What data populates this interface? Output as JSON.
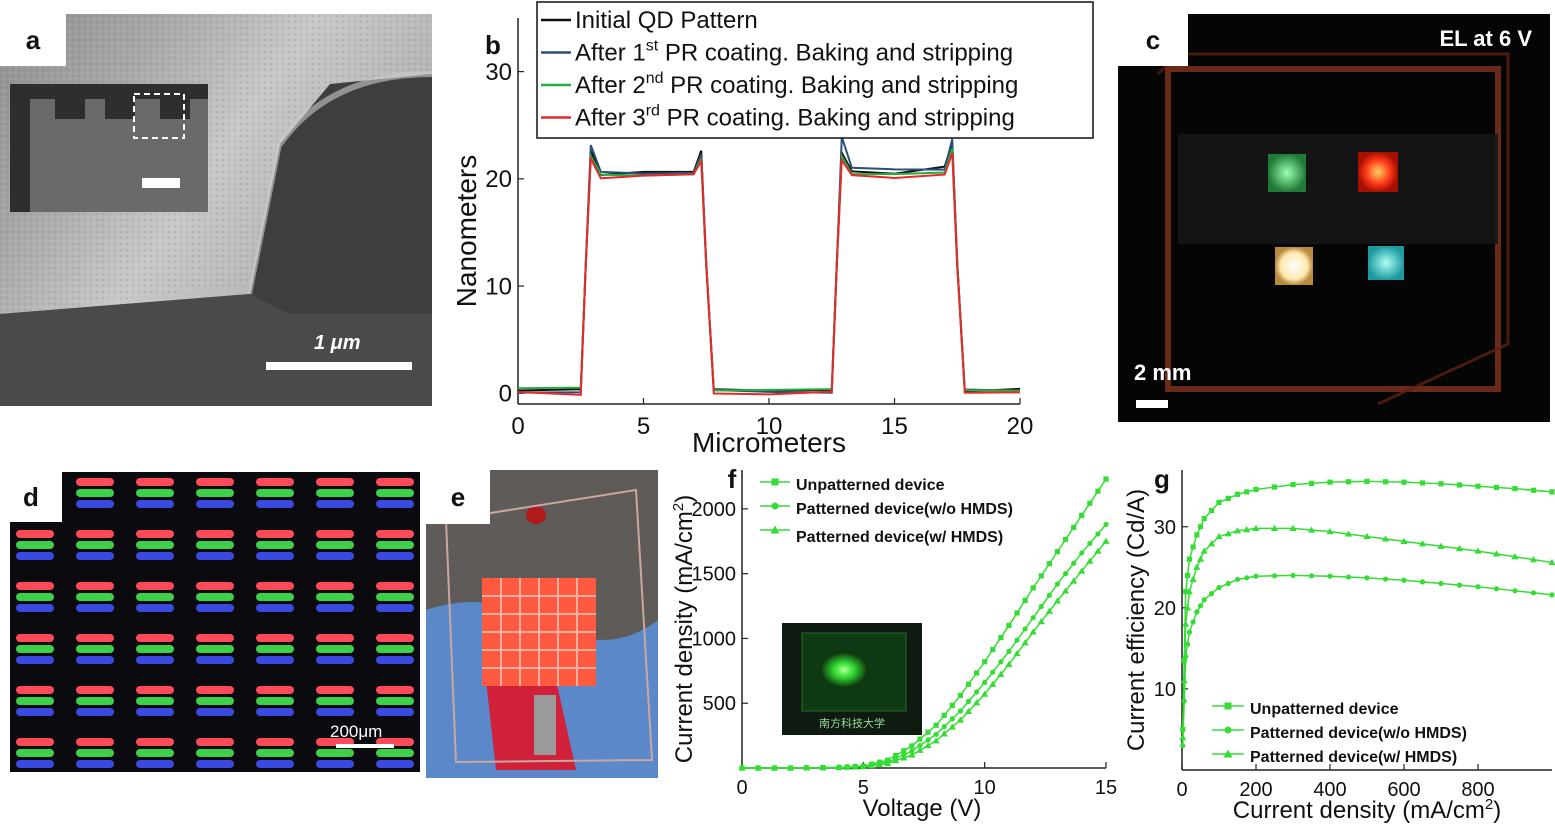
{
  "panels": {
    "a": {
      "label": "a",
      "scale_bar": "1 μm"
    },
    "b": {
      "label": "b"
    },
    "c": {
      "label": "c",
      "title": "EL at 6 V",
      "scale_bar": "2 mm"
    },
    "d": {
      "label": "d",
      "scale_bar": "200μm"
    },
    "e": {
      "label": "e"
    },
    "f": {
      "label": "f"
    },
    "g": {
      "label": "g"
    }
  },
  "chart_data": [
    {
      "id": "b",
      "type": "line",
      "xlabel": "Micrometers",
      "ylabel": "Nanometers",
      "xlim": [
        0,
        20
      ],
      "ylim": [
        -1,
        35
      ],
      "xticks": [
        0,
        5,
        10,
        15,
        20
      ],
      "yticks": [
        0,
        10,
        20,
        30
      ],
      "legend": "top",
      "series": [
        {
          "name": "Initial QD Pattern",
          "color": "#111111",
          "x": [
            0,
            2.5,
            2.7,
            2.9,
            3.3,
            5,
            7,
            7.3,
            7.5,
            7.8,
            10,
            12.5,
            12.7,
            12.9,
            13.3,
            15,
            17.0,
            17.3,
            17.5,
            17.8,
            20
          ],
          "y": [
            0.3,
            0.3,
            12,
            22.5,
            20.5,
            20.5,
            20.8,
            22.5,
            12,
            0.3,
            0.3,
            0.3,
            12,
            22.5,
            20.6,
            20.6,
            21.0,
            23.5,
            12,
            0.3,
            0.3
          ]
        },
        {
          "name": "After 1st PR coating. Baking and stripping",
          "color": "#2a4f7a",
          "x": [
            0,
            2.5,
            2.7,
            2.9,
            3.3,
            5,
            7,
            7.3,
            7.5,
            7.8,
            10,
            12.5,
            12.7,
            12.9,
            13.3,
            15,
            17.0,
            17.3,
            17.5,
            17.8,
            20
          ],
          "y": [
            0.2,
            0.2,
            12,
            23.0,
            20.6,
            20.6,
            20.7,
            22.3,
            12,
            0.2,
            0.2,
            0.2,
            12,
            23.8,
            20.9,
            20.9,
            21.0,
            23.8,
            12,
            0.2,
            0.2
          ]
        },
        {
          "name": "After 2nd PR coating. Baking and stripping",
          "color": "#22b040",
          "x": [
            0,
            2.5,
            2.7,
            2.9,
            3.3,
            5,
            7,
            7.3,
            7.5,
            7.8,
            10,
            12.5,
            12.7,
            12.9,
            13.3,
            15,
            17.0,
            17.3,
            17.5,
            17.8,
            20
          ],
          "y": [
            0.4,
            0.4,
            12,
            22.0,
            20.3,
            20.3,
            20.5,
            22.0,
            12,
            0.4,
            0.4,
            0.4,
            12,
            22.0,
            20.3,
            20.3,
            20.5,
            22.8,
            12,
            0.4,
            0.4
          ]
        },
        {
          "name": "After 3rd PR coating. Baking and stripping",
          "color": "#e8282a",
          "x": [
            0,
            2.5,
            2.7,
            2.9,
            3.3,
            5,
            7,
            7.3,
            7.5,
            7.8,
            10,
            12.5,
            12.7,
            12.9,
            13.3,
            15,
            17.0,
            17.3,
            17.5,
            17.8,
            20
          ],
          "y": [
            0.0,
            0.0,
            12,
            21.8,
            20.2,
            20.2,
            20.4,
            21.8,
            12,
            0.0,
            0.0,
            0.0,
            12,
            21.8,
            20.2,
            20.2,
            20.4,
            22.3,
            12,
            0.0,
            0.0
          ]
        }
      ],
      "legend_entries": [
        {
          "text": "Initial QD Pattern",
          "sup": "",
          "after": "",
          "color": "#111111"
        },
        {
          "text": "After 1",
          "sup": "st",
          "after": " PR coating. Baking and stripping",
          "color": "#2a4f7a"
        },
        {
          "text": "After 2",
          "sup": "nd",
          "after": " PR coating. Baking and stripping",
          "color": "#22b040"
        },
        {
          "text": "After 3",
          "sup": "rd",
          "after": " PR coating. Baking and stripping",
          "color": "#e8282a"
        }
      ]
    },
    {
      "id": "f",
      "type": "line",
      "xlabel": "Voltage (V)",
      "ylabel": "Current density (mA/cm",
      "ylabel_sup": "2",
      "ylabel_end": ")",
      "xlim": [
        0,
        15
      ],
      "ylim": [
        0,
        2300
      ],
      "xticks": [
        0,
        5,
        10,
        15
      ],
      "yticks": [
        500,
        1000,
        1500,
        2000
      ],
      "legend": "top-left",
      "series": [
        {
          "name": "Unpatterned device",
          "marker": "square",
          "x": [
            0,
            2,
            4,
            5,
            6,
            7,
            8,
            9,
            10,
            11,
            12,
            13,
            14,
            15
          ],
          "y": [
            0,
            0,
            5,
            15,
            60,
            170,
            330,
            560,
            820,
            1100,
            1390,
            1670,
            1950,
            2230
          ]
        },
        {
          "name": "Patterned device(w/o HMDS)",
          "marker": "circle",
          "x": [
            0,
            2,
            4,
            5,
            6,
            7,
            8,
            9,
            10,
            11,
            12,
            13,
            14,
            15
          ],
          "y": [
            0,
            0,
            4,
            12,
            45,
            130,
            260,
            440,
            660,
            900,
            1160,
            1420,
            1660,
            1880
          ]
        },
        {
          "name": "Patterned device(w/ HMDS)",
          "marker": "triangle",
          "x": [
            0,
            2,
            4,
            5,
            6,
            7,
            8,
            9,
            10,
            11,
            12,
            13,
            14,
            15
          ],
          "y": [
            0,
            0,
            3,
            10,
            35,
            100,
            210,
            370,
            570,
            800,
            1050,
            1290,
            1520,
            1750
          ]
        }
      ],
      "color": "#33dd33",
      "inset_caption": "南方科技大学"
    },
    {
      "id": "g",
      "type": "line",
      "xlabel": "Current density (mA/cm",
      "xlabel_sup": "2",
      "xlabel_end": ")",
      "ylabel": "Current efficiency (Cd/A)",
      "xlim": [
        0,
        1000
      ],
      "ylim": [
        0,
        37
      ],
      "xticks": [
        0,
        200,
        400,
        600,
        800
      ],
      "yticks": [
        10,
        20,
        30
      ],
      "legend": "bottom-right",
      "series": [
        {
          "name": "Unpatterned device",
          "marker": "square",
          "x": [
            2,
            10,
            20,
            40,
            60,
            100,
            150,
            200,
            300,
            400,
            500,
            600,
            700,
            800,
            900,
            1000
          ],
          "y": [
            5,
            22,
            26,
            29,
            31,
            33,
            34,
            34.6,
            35.2,
            35.5,
            35.6,
            35.5,
            35.3,
            35.0,
            34.7,
            34.3
          ]
        },
        {
          "name": "Patterned device(w/o HMDS)",
          "marker": "circle",
          "x": [
            2,
            10,
            20,
            40,
            60,
            100,
            150,
            200,
            300,
            400,
            500,
            600,
            700,
            800,
            900,
            1000
          ],
          "y": [
            3,
            14,
            17,
            19.5,
            21,
            22.5,
            23.5,
            23.9,
            24.0,
            23.9,
            23.7,
            23.4,
            23.0,
            22.6,
            22.1,
            21.6
          ]
        },
        {
          "name": "Patterned device(w/ HMDS)",
          "marker": "triangle",
          "x": [
            2,
            10,
            20,
            40,
            60,
            100,
            150,
            200,
            300,
            400,
            500,
            600,
            700,
            800,
            900,
            1000
          ],
          "y": [
            4,
            18,
            22,
            25,
            27,
            28.8,
            29.5,
            29.8,
            29.8,
            29.4,
            28.8,
            28.2,
            27.6,
            27.0,
            26.3,
            25.6
          ]
        }
      ],
      "color": "#33dd33"
    }
  ]
}
